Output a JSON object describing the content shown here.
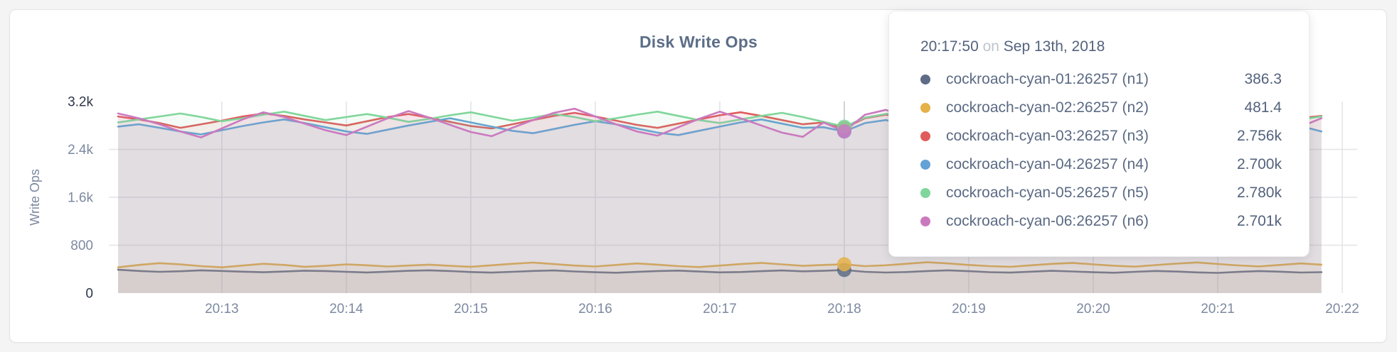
{
  "page": {
    "title": "Disk Write Ops"
  },
  "chart_data": {
    "type": "area",
    "title": "Disk Write Ops",
    "xlabel": "",
    "ylabel": "Write Ops",
    "ylim": [
      0,
      3200
    ],
    "grid": true,
    "legend_position": "tooltip",
    "y_ticks": [
      {
        "value": 0,
        "label": "0",
        "emphasis": true
      },
      {
        "value": 800,
        "label": "800",
        "emphasis": false
      },
      {
        "value": 1600,
        "label": "1.6k",
        "emphasis": false
      },
      {
        "value": 2400,
        "label": "2.4k",
        "emphasis": false
      },
      {
        "value": 3200,
        "label": "3.2k",
        "emphasis": true
      }
    ],
    "x_start_seconds": 72730,
    "x_step_seconds": 10,
    "x_axis_min_seconds": 72730,
    "x_axis_max_seconds": 73320,
    "x_ticks": [
      {
        "seconds": 72780,
        "label": "20:13"
      },
      {
        "seconds": 72840,
        "label": "20:14"
      },
      {
        "seconds": 72900,
        "label": "20:15"
      },
      {
        "seconds": 72960,
        "label": "20:16"
      },
      {
        "seconds": 73020,
        "label": "20:17"
      },
      {
        "seconds": 73080,
        "label": "20:18"
      },
      {
        "seconds": 73140,
        "label": "20:19"
      },
      {
        "seconds": 73200,
        "label": "20:20"
      },
      {
        "seconds": 73260,
        "label": "20:21"
      },
      {
        "seconds": 73320,
        "label": "20:22"
      }
    ],
    "hover_index": 35,
    "hover_time_label": "20:17:50",
    "series": [
      {
        "name": "cockroach-cyan-01:26257 (n1)",
        "color": "#5f6c87",
        "hover_value_label": "386.3",
        "values": [
          390,
          370,
          355,
          365,
          380,
          370,
          358,
          348,
          360,
          375,
          368,
          355,
          345,
          358,
          372,
          380,
          368,
          352,
          342,
          356,
          370,
          378,
          362,
          348,
          340,
          354,
          368,
          376,
          360,
          346,
          352,
          366,
          378,
          364,
          372,
          386.3,
          356,
          344,
          352,
          368,
          380,
          366,
          350,
          342,
          358,
          372,
          362,
          348,
          340,
          356,
          370,
          360,
          346,
          338,
          354,
          368,
          358,
          344,
          350
        ]
      },
      {
        "name": "cockroach-cyan-02:26257 (n2)",
        "color": "#e5b148",
        "hover_value_label": "481.4",
        "values": [
          430,
          470,
          500,
          480,
          450,
          430,
          460,
          490,
          470,
          440,
          455,
          480,
          465,
          445,
          460,
          475,
          455,
          440,
          465,
          490,
          510,
          485,
          460,
          445,
          470,
          495,
          475,
          450,
          435,
          460,
          485,
          505,
          480,
          455,
          470,
          481.4,
          450,
          465,
          490,
          515,
          495,
          470,
          450,
          440,
          465,
          488,
          505,
          480,
          458,
          442,
          468,
          492,
          512,
          486,
          462,
          446,
          470,
          495,
          475
        ]
      },
      {
        "name": "cockroach-cyan-03:26257 (n3)",
        "color": "#e05c5c",
        "hover_value_label": "2.756k",
        "values": [
          2950,
          2900,
          2840,
          2760,
          2820,
          2880,
          2950,
          3000,
          2960,
          2900,
          2850,
          2800,
          2870,
          2940,
          2990,
          2930,
          2860,
          2790,
          2750,
          2820,
          2890,
          2960,
          3010,
          2950,
          2880,
          2810,
          2760,
          2830,
          2900,
          2970,
          3020,
          2960,
          2890,
          2820,
          2850,
          2756,
          2920,
          2980,
          2940,
          2870,
          2800,
          2760,
          2830,
          2900,
          2960,
          3010,
          2950,
          2880,
          2810,
          2770,
          2840,
          2910,
          2970,
          2930,
          2860,
          2800,
          2850,
          2920,
          2960
        ]
      },
      {
        "name": "cockroach-cyan-04:26257 (n4)",
        "color": "#64a1d5",
        "hover_value_label": "2.700k",
        "values": [
          2780,
          2820,
          2760,
          2700,
          2650,
          2720,
          2790,
          2850,
          2900,
          2840,
          2770,
          2700,
          2660,
          2730,
          2800,
          2860,
          2920,
          2850,
          2780,
          2710,
          2670,
          2740,
          2810,
          2870,
          2820,
          2750,
          2680,
          2640,
          2710,
          2780,
          2850,
          2900,
          2830,
          2760,
          2770,
          2700,
          2840,
          2890,
          2820,
          2750,
          2690,
          2650,
          2720,
          2790,
          2860,
          2910,
          2840,
          2770,
          2700,
          2660,
          2730,
          2800,
          2870,
          2900,
          2830,
          2760,
          2720,
          2790,
          2700
        ]
      },
      {
        "name": "cockroach-cyan-05:26257 (n5)",
        "color": "#80d69b",
        "hover_value_label": "2.780k",
        "values": [
          2850,
          2900,
          2950,
          3000,
          2940,
          2870,
          2920,
          2980,
          3030,
          2960,
          2890,
          2940,
          2990,
          2930,
          2860,
          2910,
          2970,
          3020,
          2950,
          2880,
          2930,
          2990,
          2940,
          2870,
          2920,
          2980,
          3030,
          2960,
          2890,
          2840,
          2900,
          2960,
          3010,
          2940,
          2860,
          2780,
          2930,
          2990,
          3040,
          2970,
          2900,
          2850,
          2910,
          2970,
          3020,
          2950,
          2880,
          2930,
          2990,
          2940,
          2870,
          2920,
          2980,
          3030,
          2960,
          2890,
          2840,
          2900,
          2950
        ]
      },
      {
        "name": "cockroach-cyan-06:26257 (n6)",
        "color": "#cb79bf",
        "hover_value_label": "2.701k",
        "values": [
          3000,
          2920,
          2820,
          2700,
          2600,
          2750,
          2900,
          3020,
          2940,
          2830,
          2720,
          2640,
          2780,
          2920,
          3040,
          2930,
          2810,
          2690,
          2620,
          2760,
          2890,
          3010,
          3080,
          2950,
          2820,
          2700,
          2630,
          2770,
          2910,
          3030,
          2920,
          2800,
          2680,
          2610,
          2850,
          2701,
          2980,
          3060,
          2940,
          2810,
          2690,
          2630,
          2760,
          2900,
          3020,
          2930,
          2800,
          2670,
          2620,
          2750,
          2890,
          3010,
          3070,
          2940,
          2810,
          2700,
          2640,
          2780,
          2920
        ]
      }
    ]
  },
  "tooltip": {
    "time": "20:17:50",
    "connector": "on",
    "date": "Sep 13th, 2018",
    "rows": [
      {
        "name": "cockroach-cyan-01:26257 (n1)",
        "value": "386.3",
        "color": "#5f6c87"
      },
      {
        "name": "cockroach-cyan-02:26257 (n2)",
        "value": "481.4",
        "color": "#e5b148"
      },
      {
        "name": "cockroach-cyan-03:26257 (n3)",
        "value": "2.756k",
        "color": "#e05c5c"
      },
      {
        "name": "cockroach-cyan-04:26257 (n4)",
        "value": "2.700k",
        "color": "#64a1d5"
      },
      {
        "name": "cockroach-cyan-05:26257 (n5)",
        "value": "2.780k",
        "color": "#80d69b"
      },
      {
        "name": "cockroach-cyan-06:26257 (n6)",
        "value": "2.701k",
        "color": "#cb79bf"
      }
    ]
  },
  "colors": {
    "grid": "#e4e4e8",
    "hover_line": "#cbcbcf",
    "axis_tick": "#7d89a0",
    "axis_tick_emphasis": "#2d3648",
    "axis_label": "#7c88a0",
    "title": "#5c6e88"
  }
}
